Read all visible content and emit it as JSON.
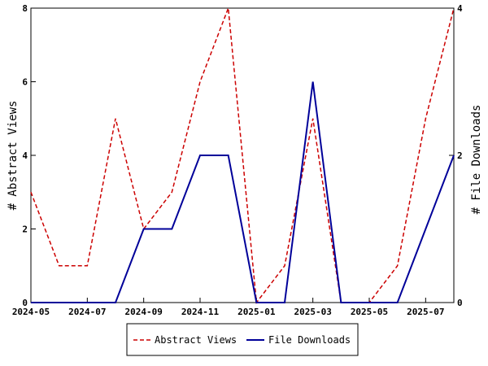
{
  "chart_data": {
    "type": "line",
    "x_ticks": [
      "2024-05",
      "2024-07",
      "2024-09",
      "2024-11",
      "2025-01",
      "2025-03",
      "2025-05",
      "2025-07"
    ],
    "x": [
      "2024-05",
      "2024-06",
      "2024-07",
      "2024-08",
      "2024-09",
      "2024-10",
      "2024-11",
      "2024-12",
      "2025-01",
      "2025-02",
      "2025-03",
      "2025-04",
      "2025-05",
      "2025-06",
      "2025-07",
      "2025-08"
    ],
    "xlim": [
      "2024-05",
      "2025-08"
    ],
    "ylabel_left": "# Abstract Views",
    "ylabel_right": "# File Downloads",
    "ylim_left": [
      0,
      8
    ],
    "ylim_right": [
      0,
      4
    ],
    "yticks_left": [
      0,
      2,
      4,
      6,
      8
    ],
    "yticks_right": [
      0,
      2,
      4
    ],
    "grid": false,
    "legend_position": "bottom-center",
    "series": [
      {
        "name": "Abstract Views",
        "axis": "left",
        "color": "#cc0000",
        "style": "dashed",
        "values": [
          3,
          1,
          1,
          5,
          2,
          3,
          6,
          8,
          0,
          1,
          5,
          0,
          0,
          1,
          5,
          8
        ]
      },
      {
        "name": "File Downloads",
        "axis": "right",
        "color": "#000099",
        "style": "solid",
        "values": [
          0,
          0,
          0,
          0,
          1,
          1,
          2,
          2,
          0,
          0,
          3,
          0,
          0,
          0,
          1,
          2
        ]
      }
    ]
  }
}
